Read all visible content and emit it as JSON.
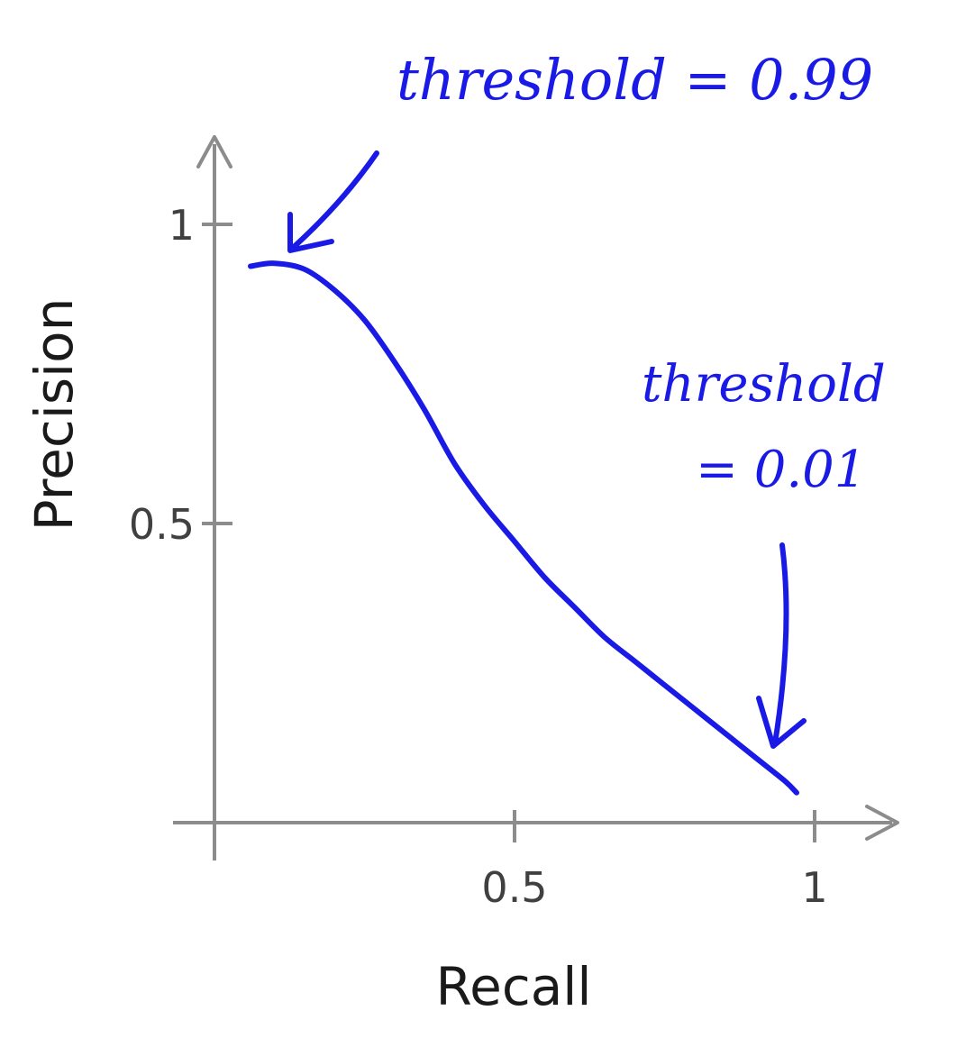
{
  "chart_data": {
    "type": "line",
    "xlabel": "Recall",
    "ylabel": "Precision",
    "xlim": [
      0,
      1.1
    ],
    "ylim": [
      0,
      1.1
    ],
    "x_ticks": [
      {
        "value": 0.5,
        "label": "0.5"
      },
      {
        "value": 1,
        "label": "1"
      }
    ],
    "y_ticks": [
      {
        "value": 0.5,
        "label": "0.5"
      },
      {
        "value": 1,
        "label": "1"
      }
    ],
    "grid": false,
    "series": [
      {
        "color": "#1a1ae6",
        "x": [
          0.06,
          0.1,
          0.15,
          0.2,
          0.25,
          0.3,
          0.35,
          0.4,
          0.45,
          0.5,
          0.55,
          0.6,
          0.65,
          0.7,
          0.75,
          0.8,
          0.85,
          0.9,
          0.95,
          0.97
        ],
        "y": [
          0.93,
          0.935,
          0.925,
          0.89,
          0.84,
          0.77,
          0.69,
          0.6,
          0.53,
          0.47,
          0.41,
          0.36,
          0.31,
          0.27,
          0.23,
          0.19,
          0.15,
          0.11,
          0.07,
          0.05
        ]
      }
    ],
    "annotations": [
      {
        "lines": [
          "threshold = 0.99"
        ],
        "points_to": {
          "x": 0.13,
          "y": 0.96
        }
      },
      {
        "lines": [
          "threshold",
          "= 0.01"
        ],
        "points_to": {
          "x": 0.92,
          "y": 0.1
        }
      }
    ]
  }
}
